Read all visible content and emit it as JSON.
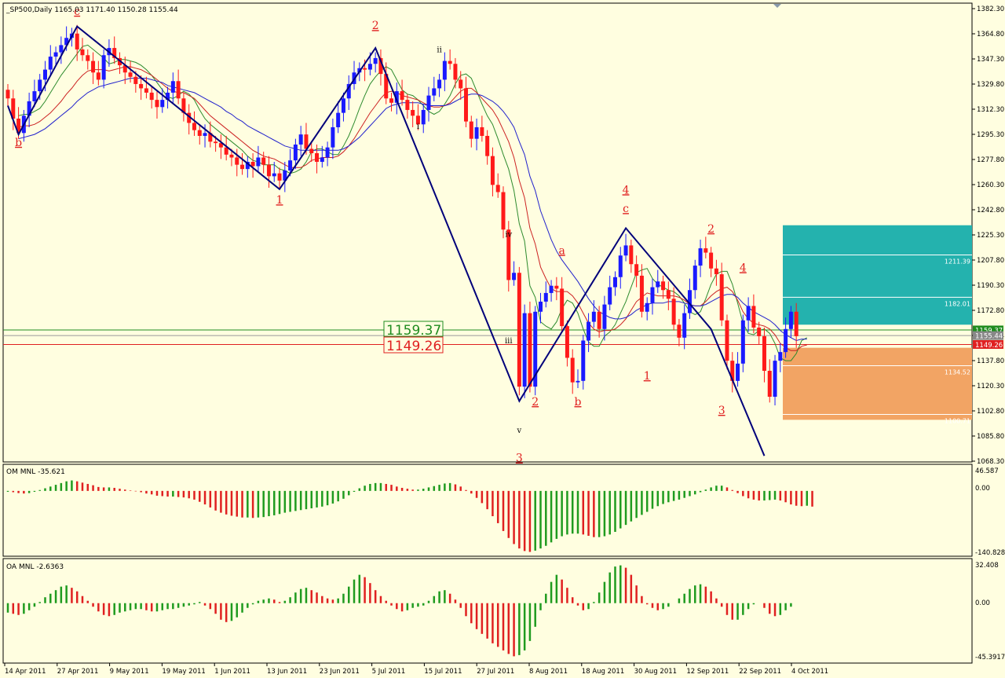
{
  "header": {
    "symbol_line": "_SP500,Daily  1165.03 1171.40 1150.28 1155.44"
  },
  "colors": {
    "background": "#fffee0",
    "bull": "#1a1aff",
    "bear": "#ff1a1a",
    "wave_line": "#00007a",
    "ma_fast": "#2e8b2e",
    "ma_mid": "#cc2222",
    "ma_slow": "#2222cc",
    "osc_up": "#1f9b1f",
    "osc_down": "#e02020",
    "teal_zone": "#24b2ae",
    "orange_zone": "#f2a464"
  },
  "price_axis": {
    "ticks": [
      "1382.30",
      "1364.80",
      "1347.30",
      "1329.80",
      "1312.30",
      "1295.30",
      "1277.80",
      "1260.30",
      "1242.80",
      "1225.30",
      "1207.80",
      "1190.30",
      "1172.80",
      "1155.44",
      "1137.80",
      "1120.30",
      "1102.80",
      "1085.80",
      "1068.30"
    ],
    "badges": [
      {
        "value": "1159.37",
        "color": "#1f8c1f"
      },
      {
        "value": "1155.44",
        "color": "#888888"
      },
      {
        "value": "1149.26",
        "color": "#e02020"
      }
    ]
  },
  "levels": {
    "green_label": "1159.37",
    "red_label": "1149.26",
    "green_value": 1159.37,
    "gray_value": 1155.44,
    "red_value": 1149.26
  },
  "zones": {
    "teal": {
      "top": 1232,
      "bottom": 1163,
      "lines": [
        "1211.39",
        "1182.01"
      ],
      "line_values": [
        1211.39,
        1182.01
      ]
    },
    "orange": {
      "top": 1147,
      "bottom": 1097,
      "lines": [
        "1134.52",
        "1100.71"
      ],
      "line_values": [
        1134.52,
        1100.71
      ]
    }
  },
  "date_axis": [
    "14 Apr 2011",
    "27 Apr 2011",
    "9 May 2011",
    "19 May 2011",
    "1 Jun 2011",
    "13 Jun 2011",
    "23 Jun 2011",
    "5 Jul 2011",
    "15 Jul 2011",
    "27 Jul 2011",
    "8 Aug 2011",
    "18 Aug 2011",
    "30 Aug 2011",
    "12 Sep 2011",
    "22 Sep 2011",
    "4 Oct 2011"
  ],
  "wave_labels": [
    {
      "text": "c",
      "color": "red",
      "i": 13,
      "price": 1378
    },
    {
      "text": "b",
      "color": "red",
      "i": 2,
      "price": 1287
    },
    {
      "text": "1",
      "color": "red",
      "i": 51,
      "price": 1247
    },
    {
      "text": "2",
      "color": "red",
      "i": 69,
      "price": 1368
    },
    {
      "text": "ii",
      "color": "black",
      "i": 81,
      "price": 1352
    },
    {
      "text": "i",
      "color": "black",
      "i": 77,
      "price": 1299
    },
    {
      "text": "iv",
      "color": "black",
      "i": 94,
      "price": 1224
    },
    {
      "text": "iii",
      "color": "black",
      "i": 94,
      "price": 1150
    },
    {
      "text": "a",
      "color": "red",
      "i": 104,
      "price": 1212
    },
    {
      "text": "v",
      "color": "black",
      "i": 96,
      "price": 1088
    },
    {
      "text": "3",
      "color": "red",
      "i": 96,
      "price": 1068
    },
    {
      "text": "2",
      "color": "red",
      "i": 99,
      "price": 1107
    },
    {
      "text": "b",
      "color": "red",
      "i": 107,
      "price": 1107
    },
    {
      "text": "4",
      "color": "red",
      "i": 116,
      "price": 1254
    },
    {
      "text": "c",
      "color": "red",
      "i": 116,
      "price": 1241
    },
    {
      "text": "1",
      "color": "red",
      "i": 120,
      "price": 1125
    },
    {
      "text": "2",
      "color": "red",
      "i": 132,
      "price": 1227
    },
    {
      "text": "4",
      "color": "red",
      "i": 138,
      "price": 1200
    },
    {
      "text": "3",
      "color": "red",
      "i": 134,
      "price": 1101
    }
  ],
  "oscillators": [
    {
      "title": "OM MNL -35.621",
      "ticks": [
        "46.587",
        "0.00",
        "-140.828"
      ]
    },
    {
      "title": "OA MNL -2.6363",
      "ticks": [
        "32.408",
        "0.00",
        "-45.3917"
      ]
    }
  ],
  "chart_data": {
    "type": "candlestick",
    "title": "_SP500,Daily",
    "x_labels": [
      "14 Apr 2011",
      "27 Apr 2011",
      "9 May 2011",
      "19 May 2011",
      "1 Jun 2011",
      "13 Jun 2011",
      "23 Jun 2011",
      "5 Jul 2011",
      "15 Jul 2011",
      "27 Jul 2011",
      "8 Aug 2011",
      "18 Aug 2011",
      "30 Aug 2011",
      "12 Sep 2011",
      "22 Sep 2011",
      "4 Oct 2011"
    ],
    "ylim": [
      1068.3,
      1382.3
    ],
    "last_bar": {
      "open": 1165.03,
      "high": 1171.4,
      "low": 1150.28,
      "close": 1155.44
    },
    "close": [
      1320,
      1306,
      1296,
      1308,
      1318,
      1325,
      1333,
      1340,
      1349,
      1352,
      1357,
      1362,
      1365,
      1354,
      1350,
      1346,
      1338,
      1333,
      1350,
      1355,
      1348,
      1343,
      1338,
      1335,
      1330,
      1327,
      1324,
      1319,
      1314,
      1319,
      1324,
      1332,
      1320,
      1310,
      1303,
      1298,
      1294,
      1296,
      1290,
      1289,
      1286,
      1281,
      1279,
      1274,
      1271,
      1276,
      1273,
      1279,
      1274,
      1266,
      1268,
      1263,
      1270,
      1277,
      1288,
      1295,
      1285,
      1282,
      1276,
      1279,
      1286,
      1300,
      1310,
      1320,
      1330,
      1338,
      1341,
      1340,
      1344,
      1348,
      1337,
      1320,
      1317,
      1325,
      1319,
      1312,
      1308,
      1302,
      1312,
      1322,
      1327,
      1333,
      1346,
      1344,
      1333,
      1327,
      1304,
      1292,
      1300,
      1294,
      1280,
      1260,
      1255,
      1229,
      1194,
      1199,
      1120,
      1171,
      1120,
      1172,
      1179,
      1185,
      1190,
      1188,
      1162,
      1140,
      1123,
      1124,
      1152,
      1165,
      1172,
      1160,
      1177,
      1189,
      1196,
      1211,
      1218,
      1205,
      1197,
      1172,
      1178,
      1189,
      1193,
      1187,
      1181,
      1163,
      1154,
      1171,
      1187,
      1204,
      1216,
      1213,
      1202,
      1198,
      1166,
      1138,
      1124,
      1136,
      1166,
      1176,
      1161,
      1155,
      1131,
      1113,
      1138,
      1144,
      1160,
      1172,
      1155
    ],
    "ma_fast": [
      1308,
      1309,
      1309,
      1311,
      1313,
      1318,
      1324,
      1330,
      1336,
      1341,
      1346,
      1351,
      1356,
      1357,
      1354,
      1351,
      1348,
      1344,
      1345,
      1347,
      1347,
      1346,
      1345,
      1343,
      1340,
      1336,
      1331,
      1326,
      1321,
      1320,
      1322,
      1325,
      1323,
      1319,
      1312,
      1306,
      1302,
      1299,
      1296,
      1293,
      1290,
      1287,
      1284,
      1280,
      1277,
      1276,
      1274,
      1274,
      1274,
      1271,
      1270,
      1268,
      1269,
      1271,
      1276,
      1283,
      1285,
      1285,
      1283,
      1281,
      1281,
      1287,
      1294,
      1303,
      1313,
      1322,
      1330,
      1335,
      1339,
      1342,
      1340,
      1333,
      1326,
      1323,
      1322,
      1319,
      1315,
      1311,
      1309,
      1311,
      1316,
      1322,
      1330,
      1336,
      1337,
      1334,
      1325,
      1316,
      1308,
      1302,
      1292,
      1281,
      1271,
      1256,
      1233,
      1221,
      1190,
      1182,
      1165,
      1162,
      1160,
      1165,
      1174,
      1180,
      1178,
      1171,
      1160,
      1151,
      1148,
      1148,
      1155,
      1158,
      1163,
      1171,
      1179,
      1189,
      1199,
      1201,
      1202,
      1195,
      1191,
      1189,
      1187,
      1186,
      1183,
      1178,
      1172,
      1170,
      1172,
      1181,
      1191,
      1198,
      1200,
      1200,
      1191,
      1178,
      1164,
      1157,
      1156,
      1159,
      1160,
      1157,
      1150,
      1140,
      1138,
      1138,
      1143,
      1152,
      1154
    ],
    "ma_mid": [
      1300,
      1301,
      1301,
      1302,
      1304,
      1307,
      1310,
      1314,
      1318,
      1323,
      1327,
      1332,
      1336,
      1339,
      1340,
      1340,
      1340,
      1339,
      1340,
      1341,
      1342,
      1342,
      1341,
      1340,
      1338,
      1336,
      1333,
      1330,
      1327,
      1325,
      1324,
      1324,
      1322,
      1320,
      1316,
      1312,
      1308,
      1305,
      1302,
      1299,
      1296,
      1293,
      1290,
      1287,
      1284,
      1282,
      1280,
      1279,
      1278,
      1276,
      1274,
      1272,
      1272,
      1272,
      1274,
      1277,
      1278,
      1279,
      1279,
      1279,
      1280,
      1283,
      1287,
      1292,
      1298,
      1304,
      1310,
      1315,
      1320,
      1324,
      1325,
      1324,
      1322,
      1321,
      1320,
      1319,
      1317,
      1315,
      1314,
      1314,
      1315,
      1317,
      1321,
      1325,
      1327,
      1327,
      1324,
      1320,
      1316,
      1312,
      1306,
      1298,
      1290,
      1279,
      1263,
      1251,
      1230,
      1219,
      1203,
      1195,
      1188,
      1186,
      1186,
      1186,
      1183,
      1178,
      1171,
      1164,
      1160,
      1158,
      1159,
      1159,
      1160,
      1163,
      1167,
      1173,
      1179,
      1182,
      1185,
      1184,
      1183,
      1183,
      1183,
      1183,
      1182,
      1180,
      1177,
      1176,
      1176,
      1179,
      1183,
      1186,
      1188,
      1189,
      1186,
      1180,
      1172,
      1167,
      1164,
      1163,
      1162,
      1160,
      1156,
      1150,
      1147,
      1145,
      1145,
      1148,
      1149
    ],
    "ma_slow": [
      1292,
      1293,
      1294,
      1295,
      1297,
      1299,
      1302,
      1305,
      1308,
      1311,
      1314,
      1318,
      1321,
      1324,
      1326,
      1328,
      1329,
      1330,
      1331,
      1332,
      1333,
      1334,
      1334,
      1334,
      1334,
      1333,
      1332,
      1331,
      1329,
      1328,
      1327,
      1326,
      1325,
      1324,
      1322,
      1320,
      1318,
      1316,
      1314,
      1311,
      1309,
      1306,
      1304,
      1301,
      1299,
      1297,
      1295,
      1293,
      1291,
      1289,
      1287,
      1286,
      1285,
      1284,
      1284,
      1284,
      1284,
      1284,
      1284,
      1284,
      1284,
      1285,
      1287,
      1290,
      1293,
      1297,
      1301,
      1305,
      1309,
      1313,
      1315,
      1316,
      1317,
      1317,
      1317,
      1317,
      1316,
      1315,
      1315,
      1315,
      1315,
      1316,
      1318,
      1320,
      1322,
      1323,
      1323,
      1322,
      1320,
      1318,
      1315,
      1311,
      1306,
      1300,
      1290,
      1281,
      1266,
      1256,
      1242,
      1232,
      1222,
      1214,
      1208,
      1203,
      1198,
      1193,
      1187,
      1181,
      1176,
      1172,
      1170,
      1168,
      1167,
      1167,
      1168,
      1170,
      1173,
      1175,
      1177,
      1178,
      1178,
      1178,
      1179,
      1179,
      1179,
      1178,
      1177,
      1176,
      1176,
      1177,
      1179,
      1181,
      1183,
      1184,
      1184,
      1182,
      1178,
      1175,
      1172,
      1170,
      1168,
      1166,
      1163,
      1159,
      1156,
      1154,
      1152,
      1153,
      1153
    ],
    "om_values": [
      -2,
      -3,
      -5,
      -6,
      -5,
      -2,
      2,
      6,
      10,
      14,
      18,
      22,
      24,
      22,
      19,
      16,
      13,
      9,
      8,
      8,
      7,
      5,
      3,
      1,
      -1,
      -3,
      -6,
      -8,
      -11,
      -12,
      -13,
      -13,
      -14,
      -15,
      -17,
      -20,
      -25,
      -31,
      -38,
      -45,
      -50,
      -54,
      -57,
      -59,
      -61,
      -61,
      -62,
      -61,
      -60,
      -58,
      -56,
      -53,
      -50,
      -48,
      -46,
      -44,
      -42,
      -40,
      -38,
      -36,
      -33,
      -29,
      -24,
      -18,
      -10,
      -2,
      6,
      12,
      16,
      18,
      18,
      16,
      14,
      10,
      7,
      5,
      3,
      3,
      5,
      8,
      11,
      14,
      17,
      18,
      15,
      10,
      2,
      -6,
      -16,
      -28,
      -42,
      -58,
      -74,
      -92,
      -108,
      -122,
      -132,
      -138,
      -140,
      -137,
      -132,
      -126,
      -118,
      -110,
      -104,
      -100,
      -98,
      -98,
      -100,
      -103,
      -106,
      -106,
      -104,
      -100,
      -94,
      -86,
      -78,
      -70,
      -62,
      -55,
      -48,
      -41,
      -35,
      -30,
      -26,
      -23,
      -20,
      -16,
      -12,
      -8,
      -3,
      3,
      8,
      12,
      12,
      8,
      2,
      -5,
      -12,
      -17,
      -20,
      -22,
      -22,
      -21,
      -20,
      -22,
      -26,
      -31,
      -34,
      -35,
      -34,
      -36
    ],
    "oa_values": [
      -8,
      -9,
      -10,
      -9,
      -6,
      -3,
      1,
      5,
      8,
      11,
      14,
      15,
      13,
      10,
      6,
      2,
      -3,
      -7,
      -10,
      -11,
      -10,
      -8,
      -7,
      -6,
      -5,
      -5,
      -6,
      -7,
      -7,
      -6,
      -5,
      -5,
      -4,
      -3,
      -2,
      -1,
      1,
      -2,
      -5,
      -9,
      -14,
      -16,
      -15,
      -12,
      -8,
      -4,
      -1,
      2,
      3,
      4,
      3,
      1,
      2,
      5,
      9,
      12,
      13,
      11,
      9,
      6,
      4,
      3,
      4,
      8,
      14,
      20,
      24,
      22,
      17,
      11,
      6,
      2,
      -2,
      -5,
      -7,
      -6,
      -4,
      -3,
      -2,
      2,
      6,
      10,
      11,
      8,
      3,
      -4,
      -11,
      -17,
      -22,
      -26,
      -30,
      -34,
      -37,
      -40,
      -43,
      -45,
      -44,
      -40,
      -32,
      -20,
      -6,
      8,
      18,
      24,
      20,
      13,
      5,
      -2,
      -6,
      -5,
      1,
      9,
      18,
      26,
      31,
      32,
      30,
      24,
      15,
      6,
      -1,
      -4,
      -6,
      -5,
      -3,
      0,
      4,
      8,
      12,
      15,
      16,
      14,
      10,
      4,
      -3,
      -10,
      -14,
      -14,
      -10,
      -5,
      -1,
      0,
      -4,
      -9,
      -11,
      -10,
      -6,
      -3
    ],
    "wave_path": [
      [
        0,
        1315
      ],
      [
        2,
        1295
      ],
      [
        13,
        1370
      ],
      [
        51,
        1257
      ],
      [
        69,
        1355
      ],
      [
        96,
        1110
      ],
      [
        116,
        1230
      ],
      [
        132,
        1160
      ],
      [
        142,
        1072
      ]
    ]
  }
}
